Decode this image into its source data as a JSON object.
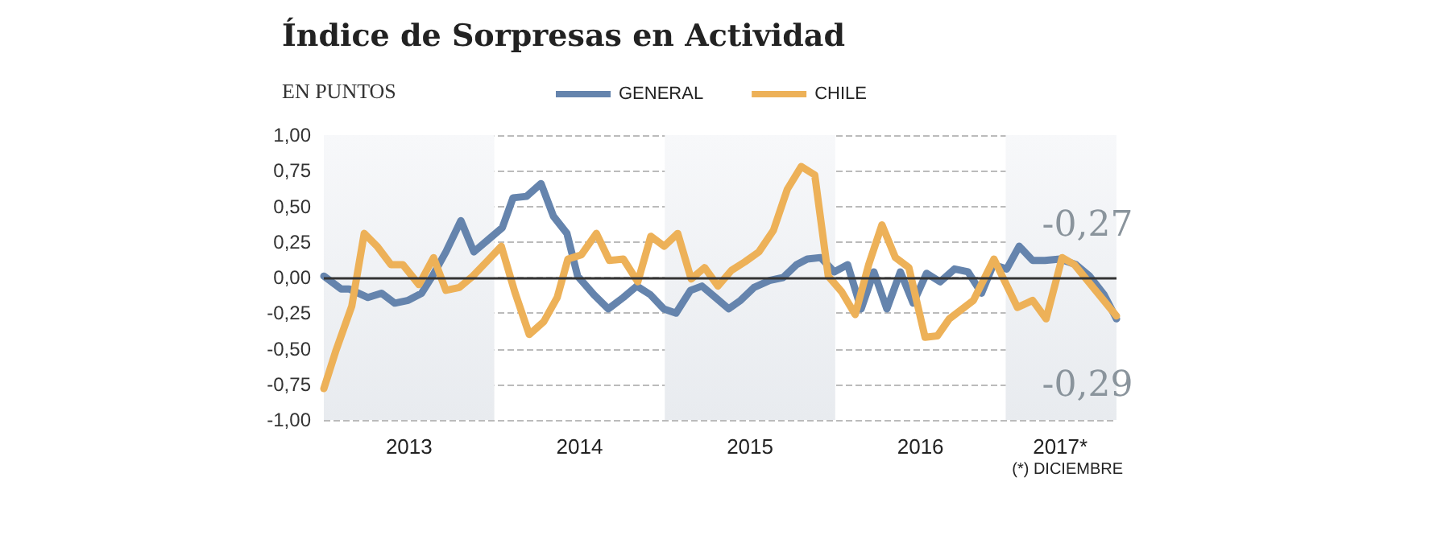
{
  "chart_data": {
    "type": "line",
    "title": "Índice de Sorpresas en Actividad",
    "subtitle": "EN PUNTOS",
    "series": [
      {
        "name": "GENERAL",
        "color": "#6584ad",
        "x": [
          2013.0,
          2013.101,
          2013.148,
          2013.259,
          2013.338,
          2013.416,
          2013.495,
          2013.574,
          2013.637,
          2013.716,
          2013.804,
          2013.88,
          2013.968,
          2014.047,
          2014.11,
          2014.189,
          2014.274,
          2014.347,
          2014.426,
          2014.489,
          2014.584,
          2014.669,
          2014.757,
          2014.836,
          2014.915,
          2014.994,
          2015.066,
          2015.151,
          2015.218,
          2015.297,
          2015.375,
          2015.445,
          2015.523,
          2015.615,
          2015.694,
          2015.773,
          2015.836,
          2015.915,
          2015.994,
          2016.073,
          2016.152,
          2016.227,
          2016.303,
          2016.382,
          2016.457,
          2016.536,
          2016.615,
          2016.7,
          2016.779,
          2016.858,
          2016.927,
          2017.006,
          2017.079,
          2017.158,
          2017.23,
          2017.319,
          2017.413,
          2017.492,
          2017.577,
          2017.65
        ],
        "values": [
          0.01,
          -0.08,
          -0.08,
          -0.14,
          -0.11,
          -0.18,
          -0.16,
          -0.11,
          0.01,
          0.18,
          0.4,
          0.18,
          0.27,
          0.35,
          0.56,
          0.57,
          0.66,
          0.43,
          0.31,
          0.01,
          -0.12,
          -0.22,
          -0.14,
          -0.06,
          -0.12,
          -0.22,
          -0.25,
          -0.09,
          -0.06,
          -0.14,
          -0.22,
          -0.16,
          -0.07,
          -0.02,
          0.0,
          0.09,
          0.13,
          0.14,
          0.04,
          0.09,
          -0.22,
          0.04,
          -0.22,
          0.04,
          -0.18,
          0.03,
          -0.03,
          0.06,
          0.04,
          -0.11,
          0.09,
          0.06,
          0.22,
          0.12,
          0.12,
          0.13,
          0.09,
          0.01,
          -0.12,
          -0.29
        ]
      },
      {
        "name": "CHILE",
        "color": "#edb158",
        "x": [
          2013.0,
          2013.069,
          2013.164,
          2013.237,
          2013.312,
          2013.394,
          2013.464,
          2013.558,
          2013.644,
          2013.716,
          2013.795,
          2013.874,
          2013.962,
          2014.041,
          2014.12,
          2014.205,
          2014.29,
          2014.369,
          2014.432,
          2014.511,
          2014.599,
          2014.675,
          2014.757,
          2014.842,
          2014.918,
          2014.997,
          2015.076,
          2015.155,
          2015.234,
          2015.312,
          2015.391,
          2015.47,
          2015.552,
          2015.637,
          2015.719,
          2015.801,
          2015.88,
          2015.959,
          2016.038,
          2016.117,
          2016.196,
          2016.274,
          2016.353,
          2016.432,
          2016.527,
          2016.599,
          2016.669,
          2016.811,
          2016.931,
          2017.069,
          2017.158,
          2017.237,
          2017.331,
          2017.404,
          2017.65
        ],
        "values": [
          -0.78,
          -0.52,
          -0.2,
          0.31,
          0.22,
          0.09,
          0.09,
          -0.05,
          0.14,
          -0.09,
          -0.07,
          0.01,
          0.12,
          0.22,
          -0.1,
          -0.4,
          -0.31,
          -0.14,
          0.13,
          0.16,
          0.31,
          0.12,
          0.13,
          -0.03,
          0.29,
          0.22,
          0.31,
          -0.01,
          0.07,
          -0.06,
          0.05,
          0.11,
          0.18,
          0.33,
          0.62,
          0.78,
          0.72,
          0.01,
          -0.1,
          -0.26,
          0.09,
          0.37,
          0.14,
          0.07,
          -0.42,
          -0.41,
          -0.29,
          -0.16,
          0.13,
          -0.21,
          -0.16,
          -0.29,
          0.14,
          0.09,
          -0.27
        ]
      }
    ],
    "xlim": [
      2013,
      2017.65
    ],
    "xticks": [
      {
        "value": 2013.5,
        "label": "2013"
      },
      {
        "value": 2014.5,
        "label": "2014"
      },
      {
        "value": 2015.5,
        "label": "2015"
      },
      {
        "value": 2016.5,
        "label": "2016"
      },
      {
        "value": 2017.32,
        "label": "2017*"
      }
    ],
    "ylim": [
      -1,
      1
    ],
    "yticks": [
      {
        "value": -1,
        "label": "-1,00"
      },
      {
        "value": -0.75,
        "label": "-0,75"
      },
      {
        "value": -0.5,
        "label": "-0,50"
      },
      {
        "value": -0.25,
        "label": "-0,25"
      },
      {
        "value": 0,
        "label": "0,00"
      },
      {
        "value": 0.25,
        "label": "0,25"
      },
      {
        "value": 0.5,
        "label": "0,50"
      },
      {
        "value": 0.75,
        "label": "0,75"
      },
      {
        "value": 1,
        "label": "1,00"
      }
    ],
    "grid": "y",
    "legend": "top",
    "marker": "none",
    "line_style": "solid",
    "bands": [
      {
        "axis": "x",
        "from": 2013,
        "to": 2014,
        "color": "#e8ebef"
      },
      {
        "axis": "x",
        "from": 2015,
        "to": 2016,
        "color": "#e8ebef"
      },
      {
        "axis": "x",
        "from": 2017,
        "to": 2017.65,
        "color": "#e8ebef"
      }
    ],
    "ref_lines": [
      {
        "axis": "y",
        "value": 0,
        "color": "#333333"
      }
    ],
    "annotations": [
      {
        "text": "-0,27",
        "x": 2017.65,
        "y": -0.27
      },
      {
        "text": "-0,29",
        "x": 2017.65,
        "y": -0.29
      },
      "(*) DICIEMBRE"
    ]
  }
}
